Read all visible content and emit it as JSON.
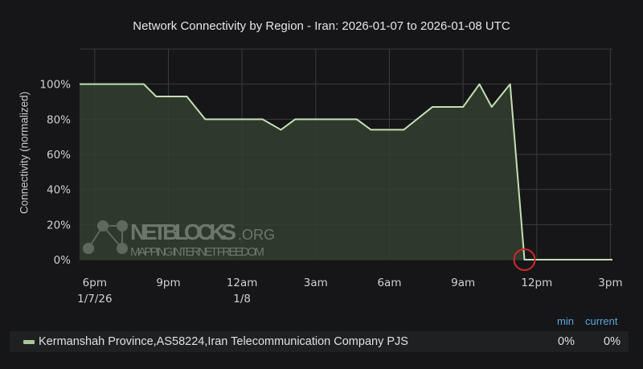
{
  "chart_data": {
    "type": "area",
    "title": "Network Connectivity by Region - Iran: 2026-01-07 to 2026-01-08 UTC",
    "ylabel": "Connectivity (normalized)",
    "xlabel": "",
    "ylim": [
      0,
      120
    ],
    "xlim": [
      "2026-01-07 17:23",
      "2026-01-08 15:05"
    ],
    "y_ticks": [
      "0%",
      "20%",
      "40%",
      "60%",
      "80%",
      "100%"
    ],
    "y_tick_values": [
      0,
      20,
      40,
      60,
      80,
      100
    ],
    "x_ticks": [
      {
        "time": "2026-01-07 18:00",
        "label": "6pm",
        "sublabel": "1/7/26"
      },
      {
        "time": "2026-01-07 21:00",
        "label": "9pm",
        "sublabel": ""
      },
      {
        "time": "2026-01-08 00:00",
        "label": "12am",
        "sublabel": "1/8"
      },
      {
        "time": "2026-01-08 03:00",
        "label": "3am",
        "sublabel": ""
      },
      {
        "time": "2026-01-08 06:00",
        "label": "6am",
        "sublabel": ""
      },
      {
        "time": "2026-01-08 09:00",
        "label": "9am",
        "sublabel": ""
      },
      {
        "time": "2026-01-08 12:00",
        "label": "12pm",
        "sublabel": ""
      },
      {
        "time": "2026-01-08 15:00",
        "label": "3pm",
        "sublabel": ""
      }
    ],
    "grid": true,
    "legend_placement": "bottom",
    "series": [
      {
        "name": "Kermanshah Province,AS58224,Iran Telecommunication Company PJS",
        "color": "#c5dfb5",
        "fill": "#33402f",
        "x": [
          "2026-01-07 17:23",
          "2026-01-07 20:00",
          "2026-01-07 20:30",
          "2026-01-07 21:45",
          "2026-01-07 22:30",
          "2026-01-08 00:50",
          "2026-01-08 01:35",
          "2026-01-08 02:10",
          "2026-01-08 04:40",
          "2026-01-08 05:15",
          "2026-01-08 06:35",
          "2026-01-08 07:45",
          "2026-01-08 09:00",
          "2026-01-08 09:40",
          "2026-01-08 10:10",
          "2026-01-08 10:55",
          "2026-01-08 11:30",
          "2026-01-08 15:05"
        ],
        "values": [
          100,
          100,
          93,
          93,
          80,
          80,
          74,
          80,
          80,
          74,
          74,
          87,
          87,
          100,
          87,
          100,
          0,
          0
        ]
      }
    ],
    "annotations": [
      {
        "type": "circle",
        "time": "2026-01-08 11:30",
        "value": 0,
        "color": "#d02a2a"
      }
    ],
    "watermark": {
      "name": "NETBLOCKS",
      "suffix": ".ORG",
      "tagline": "MAPPING INTERNET FREEDOM"
    }
  },
  "legend": {
    "headers": {
      "min": "min",
      "current": "current"
    },
    "items": [
      {
        "name": "Kermanshah Province,AS58224,Iran Telecommunication Company PJS",
        "min": "0%",
        "current": "0%"
      }
    ]
  }
}
